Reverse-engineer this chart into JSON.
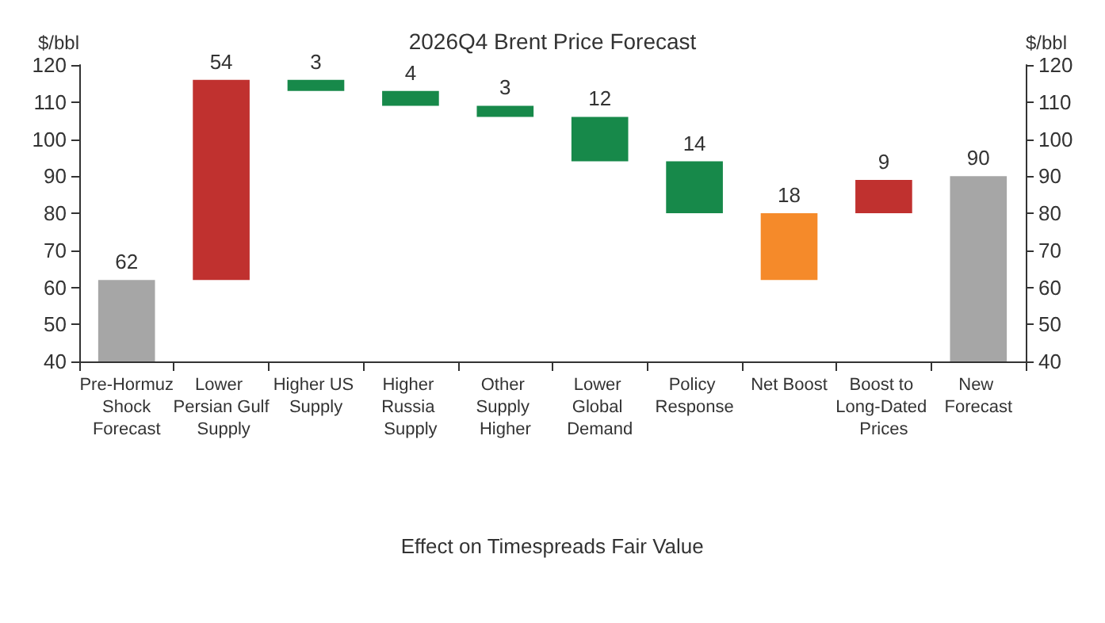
{
  "chart_data": {
    "type": "bar",
    "title": "2026Q4 Brent Price Forecast",
    "ylabel": "$/bbl",
    "y2label": "$/bbl",
    "categories": [
      "Pre-Hormuz Shock Forecast",
      "Lower Persian Gulf Supply",
      "Higher US Supply",
      "Higher Russia Supply",
      "Other Supply Higher",
      "Lower Global Demand",
      "Policy Response",
      "Net Boost",
      "Boost to Long-Dated Prices",
      "New Forecast"
    ],
    "values": [
      62,
      54,
      3,
      4,
      3,
      12,
      14,
      18,
      9,
      90
    ],
    "base": [
      null,
      62,
      113,
      109,
      106,
      94,
      80,
      62,
      80,
      null
    ],
    "colors": [
      "#a6a6a6",
      "#c0312f",
      "#17894a",
      "#17894a",
      "#17894a",
      "#17894a",
      "#17894a",
      "#f58a2a",
      "#c0312f",
      "#a6a6a6"
    ],
    "ylim": [
      40,
      120
    ],
    "yticks": [
      40,
      50,
      60,
      70,
      80,
      90,
      100,
      110,
      120
    ],
    "y2lim": [
      40,
      120
    ],
    "y2ticks": [
      40,
      50,
      60,
      70,
      80,
      90,
      100,
      110,
      120
    ],
    "annotations": [
      "Effect on Timespreads Fair Value"
    ],
    "data_labels": true,
    "grid": false
  }
}
